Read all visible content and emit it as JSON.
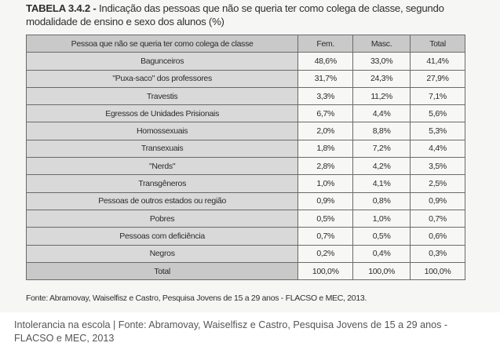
{
  "figure": {
    "title_label": "TABELA 3.4.2 -",
    "title_text": " Indicação das pessoas que não se queria ter como colega de classe, segundo modalidade de ensino e sexo dos alunos (%)",
    "source": "Fonte: Abramovay, Waiselfisz e Castro, Pesquisa Jovens de 15 a 29 anos - FLACSO e MEC, 2013."
  },
  "table": {
    "headers": [
      "Pessoa que não se queria ter como colega de classe",
      "Fem.",
      "Masc.",
      "Total"
    ],
    "rows": [
      [
        "Bagunceiros",
        "48,6%",
        "33,0%",
        "41,4%"
      ],
      [
        "\"Puxa-saco\" dos professores",
        "31,7%",
        "24,3%",
        "27,9%"
      ],
      [
        "Travestis",
        "3,3%",
        "11,2%",
        "7,1%"
      ],
      [
        "Egressos de Unidades Prisionais",
        "6,7%",
        "4,4%",
        "5,6%"
      ],
      [
        "Homossexuais",
        "2,0%",
        "8,8%",
        "5,3%"
      ],
      [
        "Transexuais",
        "1,8%",
        "7,2%",
        "4,4%"
      ],
      [
        "\"Nerds\"",
        "2,8%",
        "4,2%",
        "3,5%"
      ],
      [
        "Transgêneros",
        "1,0%",
        "4,1%",
        "2,5%"
      ],
      [
        "Pessoas de outros estados ou região",
        "0,9%",
        "0,8%",
        "0,9%"
      ],
      [
        "Pobres",
        "0,5%",
        "1,0%",
        "0,7%"
      ],
      [
        "Pessoas com deficiência",
        "0,7%",
        "0,5%",
        "0,6%"
      ],
      [
        "Negros",
        "0,2%",
        "0,4%",
        "0,3%"
      ],
      [
        "Total",
        "100,0%",
        "100,0%",
        "100,0%"
      ]
    ]
  },
  "caption": "Intolerancia na escola | Fonte: Abramovay, Waiselfisz e Castro, Pesquisa Jovens de 15 a 29 anos - FLACSO e MEC, 2013"
}
